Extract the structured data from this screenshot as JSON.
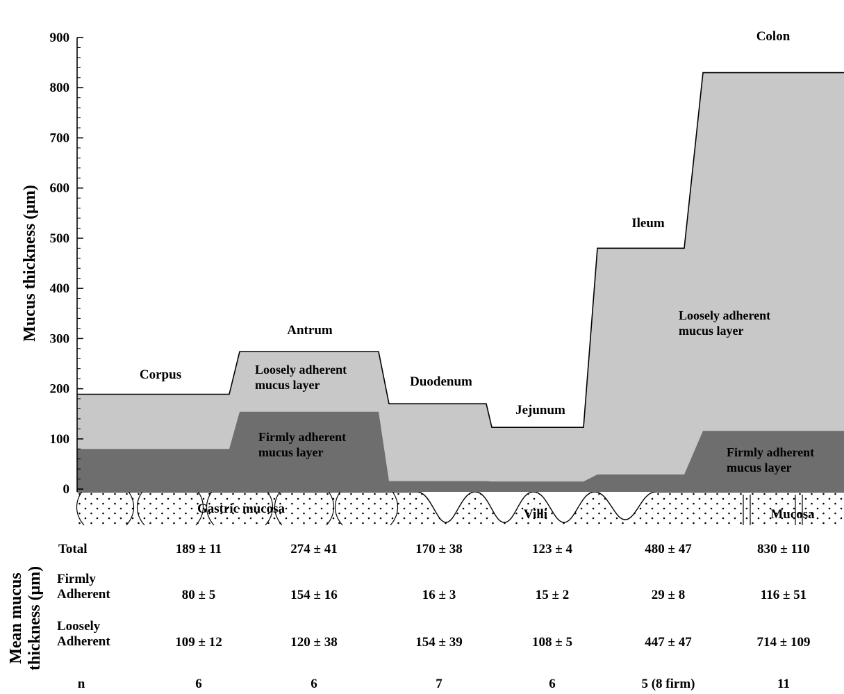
{
  "chart_data": {
    "type": "area",
    "ylabel": "Mucus thickness (μm)",
    "ylim": [
      0,
      900
    ],
    "yticks": [
      "0",
      "100",
      "200",
      "300",
      "400",
      "500",
      "600",
      "700",
      "800",
      "900"
    ],
    "categories": [
      "Corpus",
      "Antrum",
      "Duodenum",
      "Jejunum",
      "Ileum",
      "Colon"
    ],
    "series": [
      {
        "key": "firm",
        "values": [
          80,
          154,
          16,
          15,
          29,
          116
        ],
        "color": "#6e6e6e"
      },
      {
        "key": "total",
        "values": [
          189,
          274,
          170,
          123,
          480,
          830
        ],
        "color": "#c8c8c8"
      }
    ],
    "layer_labels": {
      "loose_antrum": [
        "Loosely adherent",
        "mucus layer"
      ],
      "firm_antrum": [
        "Firmly adherent",
        "mucus layer"
      ],
      "loose_colon": [
        "Loosely adherent",
        "mucus layer"
      ],
      "firm_colon": [
        "Firmly adherent",
        "mucus layer"
      ]
    },
    "mucosa_labels": {
      "gastric": "Gastric mucosa",
      "villi": "Villi",
      "colon": "Mucosa"
    }
  },
  "table": {
    "side_label": [
      "Mean mucus",
      "thickness (μm)"
    ],
    "rows": [
      {
        "label": [
          "Total"
        ],
        "cells": [
          "189 ± 11",
          "274 ± 41",
          "170 ± 38",
          "123 ± 4",
          "480 ± 47",
          "830 ± 110"
        ]
      },
      {
        "label": [
          "Firmly",
          "Adherent"
        ],
        "cells": [
          "80 ± 5",
          "154 ± 16",
          "16 ± 3",
          "15 ± 2",
          "29 ± 8",
          "116 ± 51"
        ]
      },
      {
        "label": [
          "Loosely",
          "Adherent"
        ],
        "cells": [
          "109 ± 12",
          "120 ± 38",
          "154 ± 39",
          "108 ± 5",
          "447 ± 47",
          "714 ± 109"
        ]
      },
      {
        "label": [
          "n"
        ],
        "cells": [
          "6",
          "6",
          "7",
          "6",
          "5 (8 firm)",
          "11"
        ]
      }
    ]
  }
}
